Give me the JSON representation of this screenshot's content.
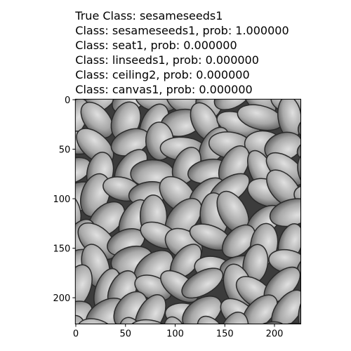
{
  "chart_data": {
    "type": "image",
    "title": [
      "True Class: sesameseeds1",
      "Class: sesameseeds1, prob: 1.000000",
      "Class: seat1, prob: 0.000000",
      "Class: linseeds1, prob: 0.000000",
      "Class: ceiling2, prob: 0.000000",
      "Class: canvas1, prob: 0.000000"
    ],
    "xlim": [
      -0.5,
      226.5
    ],
    "xticks": [
      0,
      50,
      100,
      150,
      200
    ],
    "ylim": [
      226.5,
      -0.5
    ],
    "yticks": [
      0,
      50,
      100,
      150,
      200
    ]
  }
}
